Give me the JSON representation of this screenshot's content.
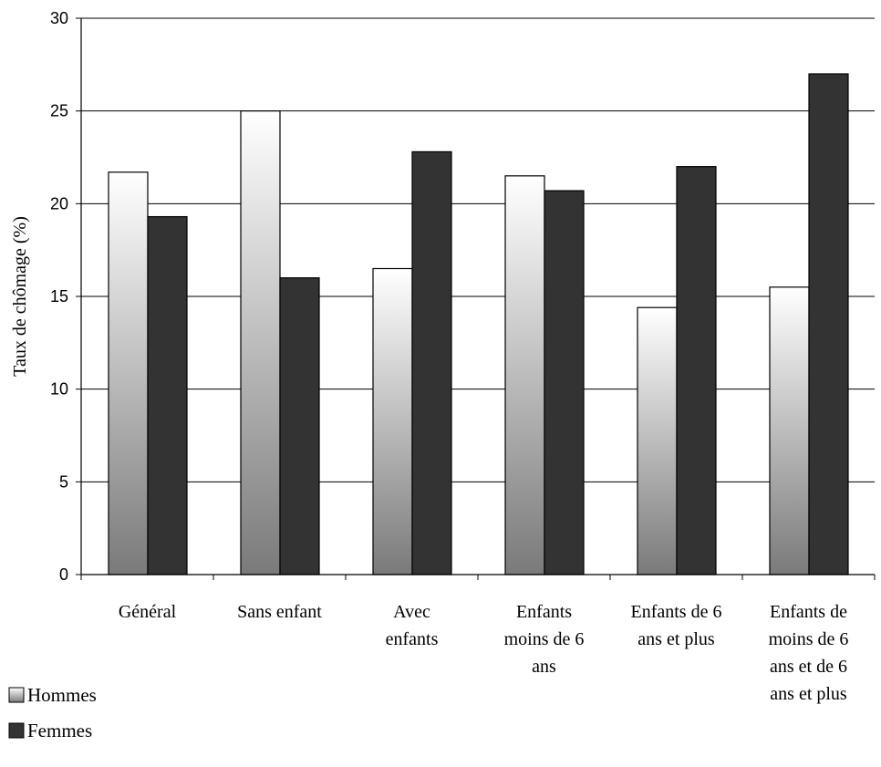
{
  "chart_data": {
    "type": "bar",
    "categories": [
      [
        "Général"
      ],
      [
        "Sans enfant"
      ],
      [
        "Avec",
        "enfants"
      ],
      [
        "Enfants",
        "moins de 6",
        "ans"
      ],
      [
        "Enfants de 6",
        "ans et plus"
      ],
      [
        "Enfants de",
        "moins de 6",
        "ans et de 6",
        "ans et plus"
      ]
    ],
    "series": [
      {
        "name": "Hommes",
        "values": [
          21.7,
          25.0,
          16.5,
          21.5,
          14.4,
          15.5
        ],
        "gradient": [
          "#ffffff",
          "#7a7a7a"
        ]
      },
      {
        "name": "Femmes",
        "values": [
          19.3,
          16.0,
          22.8,
          20.7,
          22.0,
          27.0
        ],
        "color": "#333333"
      }
    ],
    "ylabel": "Taux de chômage (%)",
    "ylim": [
      0,
      30
    ],
    "yticks": [
      0,
      5,
      10,
      15,
      20,
      25,
      30
    ],
    "grid": true,
    "legend": "bottom-left"
  }
}
